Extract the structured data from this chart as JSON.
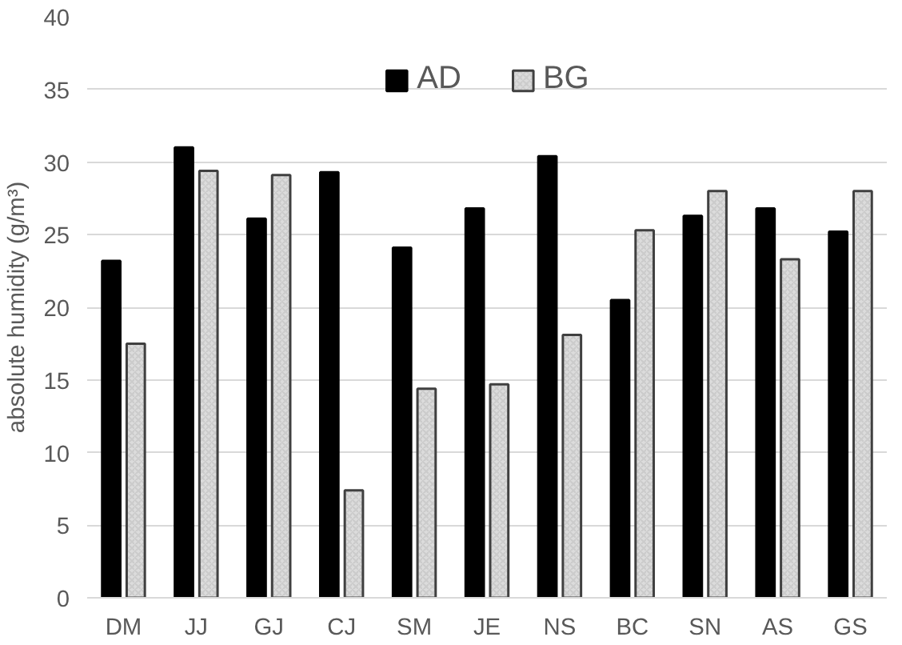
{
  "chart_data": {
    "type": "bar",
    "ylabel": "absolute humidity (g/m³)",
    "categories": [
      "DM",
      "JJ",
      "GJ",
      "CJ",
      "SM",
      "JE",
      "NS",
      "BC",
      "SN",
      "AS",
      "GS"
    ],
    "series": [
      {
        "name": "AD",
        "color": "#000000",
        "values": [
          23.2,
          31.0,
          26.1,
          29.3,
          24.1,
          26.8,
          30.4,
          20.5,
          26.3,
          26.8,
          25.2
        ]
      },
      {
        "name": "BG",
        "color": "#dcdcdc",
        "values": [
          17.5,
          29.4,
          29.1,
          7.4,
          14.4,
          14.7,
          18.1,
          25.3,
          28.0,
          23.3,
          28.0
        ]
      }
    ],
    "ylim": [
      0,
      40
    ],
    "yticks": [
      0,
      5,
      10,
      15,
      20,
      25,
      30,
      35,
      40
    ],
    "grid": "y",
    "legend": "top"
  }
}
